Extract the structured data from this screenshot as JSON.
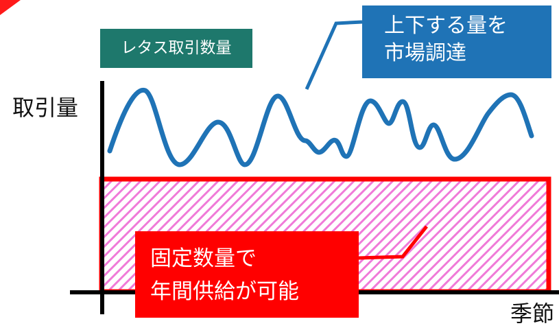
{
  "badge": {
    "text": "レタス取引数量"
  },
  "callout_market": {
    "line1": "上下する量を",
    "line2": "市場調達"
  },
  "callout_fixed": {
    "line1": "固定数量で",
    "line2": "年間供給が可能"
  },
  "axes": {
    "y_label": "取引量",
    "x_label": "季節"
  },
  "colors": {
    "wave": "#1f73b6",
    "fixed_area_border": "#ff0000",
    "fixed_area_hatch": "#f07ad8",
    "badge_bg": "#1e786c",
    "market_box_bg": "#1f73b6",
    "fixed_box_bg": "#ff0000",
    "axis": "#000000"
  }
}
